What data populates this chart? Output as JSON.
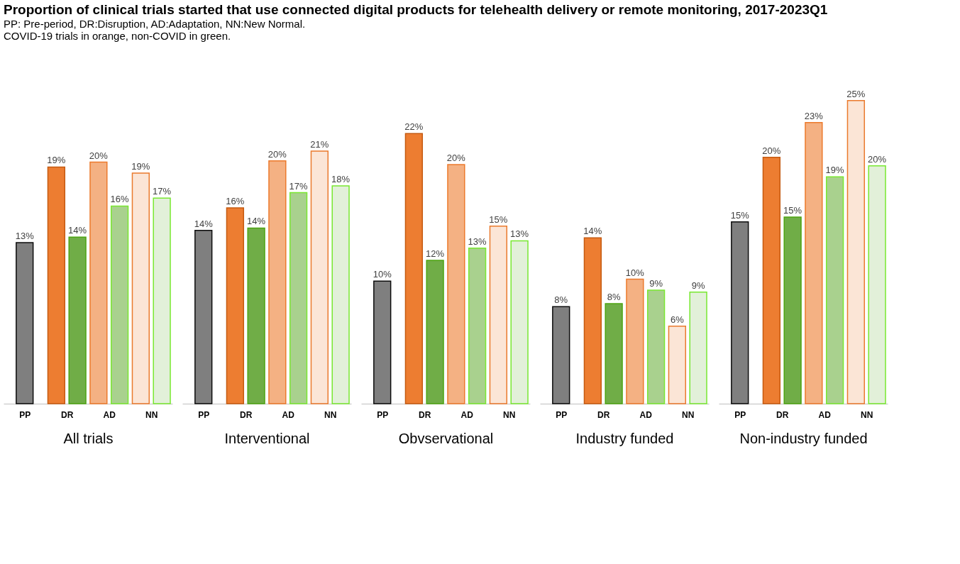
{
  "chart_data": [
    {
      "type": "bar",
      "title": "Proportion of clinical trials started that use connected digital products for telehealth delivery or remote monitoring, 2017-2023Q1",
      "subtitle": "PP: Pre-period, DR:Disruption, AD:Adaptation, NN:New Normal.\nCOVID-19 trials in orange, non-COVID in green.",
      "xlabel": "All trials",
      "categories": [
        "PP",
        "DR",
        "AD",
        "NN"
      ],
      "series": [
        {
          "colors": [
            "#7f7f7f",
            "#ed7d31",
            "#f4b183",
            "#fbe5d6"
          ],
          "values": [
            13.2,
            19.4,
            19.8,
            18.9
          ],
          "value_labels": [
            "13%",
            "19%",
            "20%",
            "19%"
          ]
        },
        {
          "colors": [
            null,
            "#70ad47",
            "#a9d18e",
            "#e2f0d9"
          ],
          "values": [
            null,
            13.65,
            16.2,
            16.85
          ],
          "value_labels": [
            null,
            "14%",
            "16%",
            "17%"
          ]
        }
      ]
    },
    {
      "type": "bar",
      "xlabel": "Interventional",
      "categories": [
        "PP",
        "DR",
        "AD",
        "NN"
      ],
      "series": [
        {
          "colors": [
            "#7f7f7f",
            "#ed7d31",
            "#f4b183",
            "#fbe5d6"
          ],
          "values": [
            14.2,
            16.05,
            19.9,
            20.7
          ],
          "value_labels": [
            "14%",
            "16%",
            "20%",
            "21%"
          ]
        },
        {
          "colors": [
            null,
            "#70ad47",
            "#a9d18e",
            "#e2f0d9"
          ],
          "values": [
            null,
            14.4,
            17.3,
            17.85
          ],
          "value_labels": [
            null,
            "14%",
            "17%",
            "18%"
          ]
        }
      ]
    },
    {
      "type": "bar",
      "xlabel": "Obvservational",
      "categories": [
        "PP",
        "DR",
        "AD",
        "NN"
      ],
      "series": [
        {
          "colors": [
            "#7f7f7f",
            "#ed7d31",
            "#f4b183",
            "#fbe5d6"
          ],
          "values": [
            10.05,
            22.15,
            19.6,
            14.55
          ],
          "value_labels": [
            "10%",
            "22%",
            "20%",
            "15%"
          ]
        },
        {
          "colors": [
            null,
            "#70ad47",
            "#a9d18e",
            "#e2f0d9"
          ],
          "values": [
            null,
            11.75,
            12.75,
            13.35
          ],
          "value_labels": [
            null,
            "12%",
            "13%",
            "13%"
          ]
        }
      ]
    },
    {
      "type": "bar",
      "xlabel": "Industry funded",
      "categories": [
        "PP",
        "DR",
        "AD",
        "NN"
      ],
      "series": [
        {
          "colors": [
            "#7f7f7f",
            "#ed7d31",
            "#f4b183",
            "#fbe5d6"
          ],
          "values": [
            7.95,
            13.6,
            10.2,
            6.35
          ],
          "value_labels": [
            "8%",
            "14%",
            "10%",
            "6%"
          ]
        },
        {
          "colors": [
            null,
            "#70ad47",
            "#a9d18e",
            "#e2f0d9"
          ],
          "values": [
            null,
            8.2,
            9.3,
            9.15
          ],
          "value_labels": [
            null,
            "8%",
            "9%",
            "9%"
          ]
        }
      ]
    },
    {
      "type": "bar",
      "xlabel": "Non-industry funded",
      "categories": [
        "PP",
        "DR",
        "AD",
        "NN"
      ],
      "series": [
        {
          "colors": [
            "#7f7f7f",
            "#ed7d31",
            "#f4b183",
            "#fbe5d6"
          ],
          "values": [
            14.9,
            20.2,
            23.05,
            24.85
          ],
          "value_labels": [
            "15%",
            "20%",
            "23%",
            "25%"
          ]
        },
        {
          "colors": [
            null,
            "#70ad47",
            "#a9d18e",
            "#e2f0d9"
          ],
          "values": [
            null,
            15.3,
            18.6,
            19.5
          ],
          "value_labels": [
            null,
            "15%",
            "19%",
            "20%"
          ]
        }
      ]
    }
  ]
}
